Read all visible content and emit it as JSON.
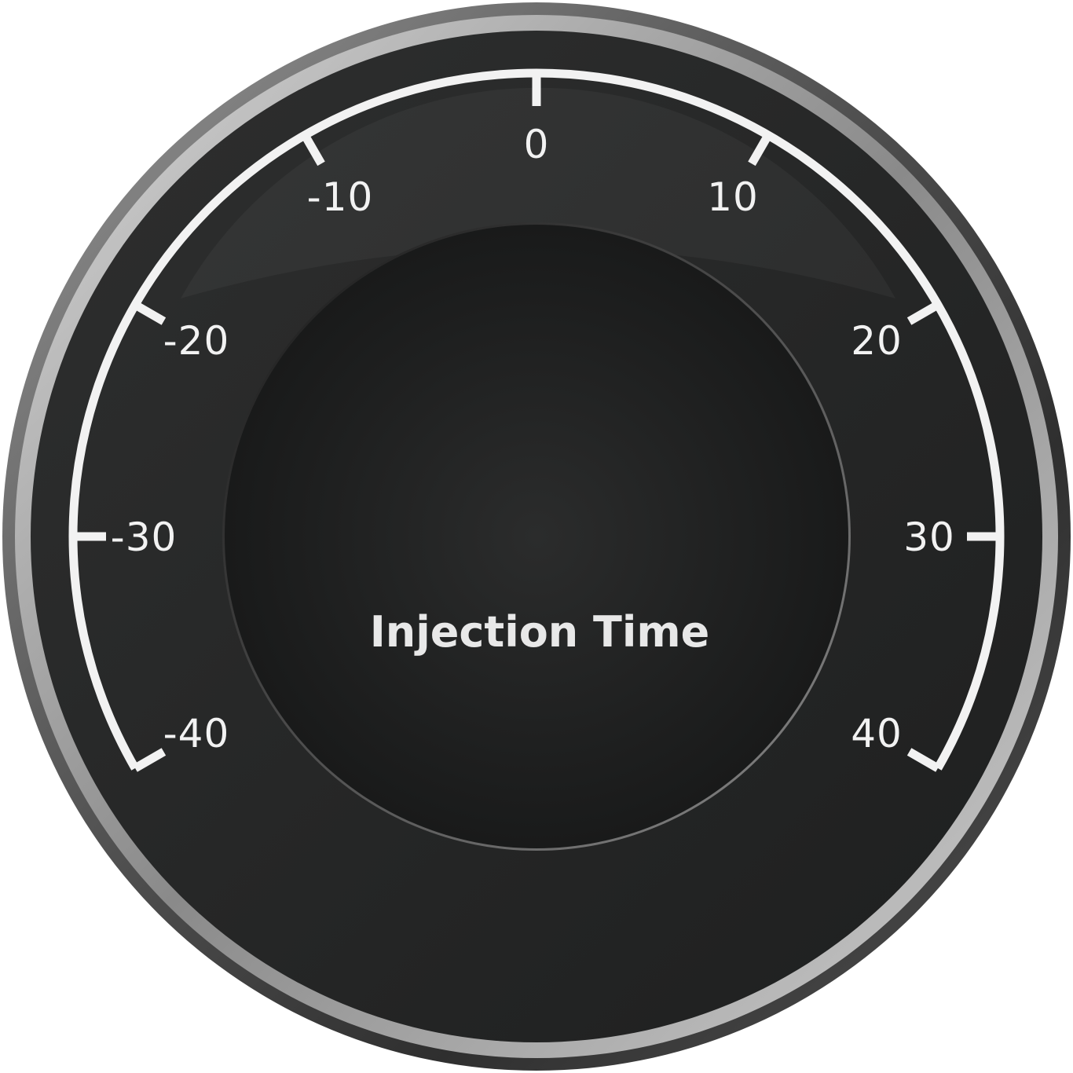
{
  "gauge": {
    "title": "Injection Time",
    "min": -40,
    "max": 40,
    "major_step": 10,
    "ticks": [
      {
        "value": -40,
        "label": "-40"
      },
      {
        "value": -30,
        "label": "-30"
      },
      {
        "value": -20,
        "label": "-20"
      },
      {
        "value": -10,
        "label": "-10"
      },
      {
        "value": 0,
        "label": "0"
      },
      {
        "value": 10,
        "label": "10"
      },
      {
        "value": 20,
        "label": "20"
      },
      {
        "value": 30,
        "label": "30"
      },
      {
        "value": 40,
        "label": "40"
      }
    ],
    "colors": {
      "face": "#2a2b2b",
      "inner": "#1f2020",
      "scale": "#f2f2f2",
      "bezel": "#6e6e6e"
    }
  }
}
